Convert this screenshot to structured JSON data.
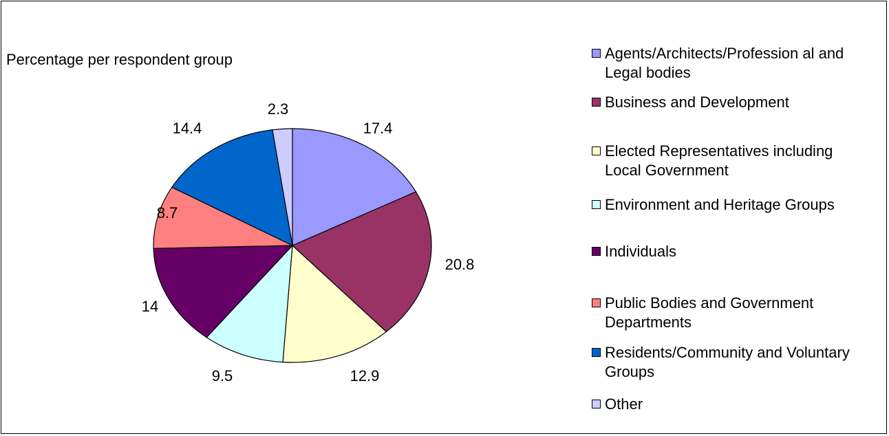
{
  "chart_data": {
    "type": "pie",
    "title": "Percentage per respondent group",
    "slices": [
      {
        "label": "Agents/Architects/Profession al and Legal bodies",
        "value": 17.4,
        "value_label": "17.4",
        "color": "#9999FF"
      },
      {
        "label": "Business and Development",
        "value": 20.8,
        "value_label": "20.8",
        "color": "#993366"
      },
      {
        "label": "Elected Representatives including Local Government",
        "value": 12.9,
        "value_label": "12.9",
        "color": "#FFFFCC"
      },
      {
        "label": "Environment and Heritage Groups",
        "value": 9.5,
        "value_label": "9.5",
        "color": "#CCFFFF"
      },
      {
        "label": "Individuals",
        "value": 14,
        "value_label": "14",
        "color": "#660066"
      },
      {
        "label": "Public Bodies and Government Departments",
        "value": 8.7,
        "value_label": "8.7",
        "color": "#FF8080"
      },
      {
        "label": "Residents/Community and Voluntary Groups",
        "value": 14.4,
        "value_label": "14.4",
        "color": "#0066CC"
      },
      {
        "label": "Other",
        "value": 2.3,
        "value_label": "2.3",
        "color": "#CCCCFF"
      }
    ],
    "legend_placement": "right"
  }
}
